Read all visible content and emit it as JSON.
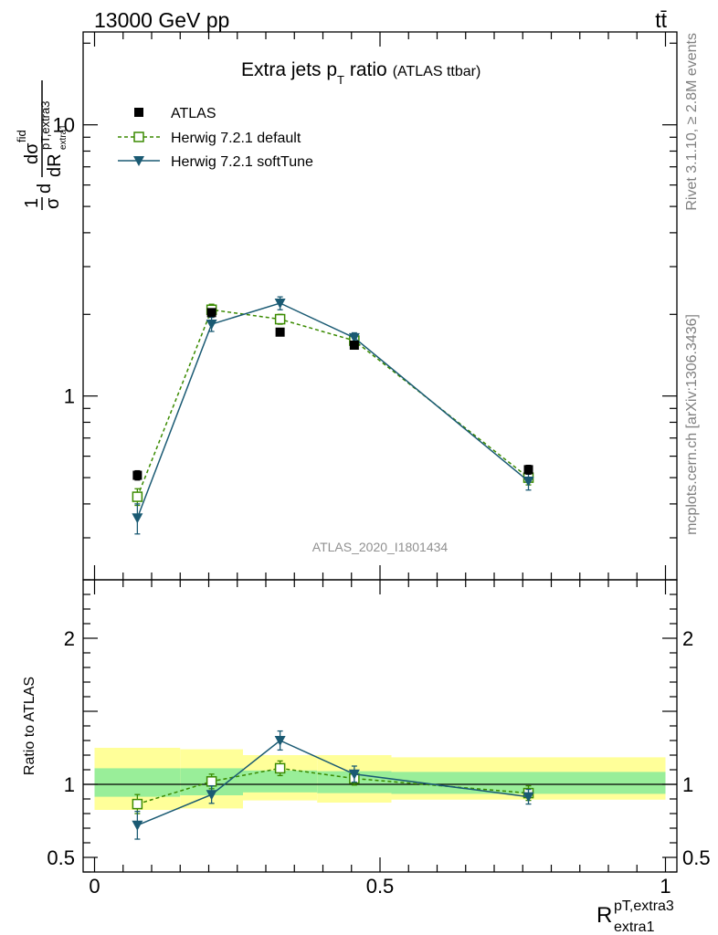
{
  "header": {
    "energy_label": "13000 GeV pp",
    "process_label": "tt̄"
  },
  "side_labels": {
    "rivet": "Rivet 3.1.10, ≥ 2.8M events",
    "mcplots": "mcplots.cern.ch [arXiv:1306.3436]"
  },
  "colors": {
    "atlas": "#000000",
    "herwig_default": "#3a8a00",
    "herwig_softtune": "#1a5a73",
    "band_inner": "#99ee99",
    "band_outer": "#ffff99"
  },
  "chart_data": [
    {
      "type": "line",
      "panel": "main",
      "title_main": "Extra jets p",
      "title_sub": "T",
      "title_tail": " ratio",
      "title_small": "(ATLAS ttbar)",
      "analysis_label": "ATLAS_2020_I1801434",
      "ylabel": "1/σ dσ^fid / dR^pT,extra3_extra1",
      "yscale": "log",
      "ylim": [
        0.21,
        22
      ],
      "xlim": [
        -0.02,
        1.02
      ],
      "ytick_labels": [
        "1",
        "10"
      ],
      "ytick_values": [
        1,
        10
      ],
      "series": [
        {
          "name": "ATLAS",
          "style": "markers",
          "x": [
            0.075,
            0.205,
            0.325,
            0.455,
            0.76
          ],
          "y": [
            0.51,
            2.03,
            1.72,
            1.54,
            0.535
          ],
          "yerr": [
            0.02,
            0.05,
            0.04,
            0.04,
            0.02
          ]
        },
        {
          "name": "Herwig 7.2.1 default",
          "style": "dashed-open-square",
          "x": [
            0.075,
            0.205,
            0.325,
            0.455,
            0.76
          ],
          "y": [
            0.425,
            2.08,
            1.92,
            1.6,
            0.5
          ],
          "yerr": [
            0.03,
            0.1,
            0.08,
            0.06,
            0.03
          ]
        },
        {
          "name": "Herwig 7.2.1 softTune",
          "style": "solid-down-triangle",
          "x": [
            0.075,
            0.205,
            0.325,
            0.455,
            0.76
          ],
          "y": [
            0.355,
            1.84,
            2.2,
            1.64,
            0.485
          ],
          "yerr": [
            0.045,
            0.11,
            0.12,
            0.07,
            0.035
          ]
        }
      ]
    },
    {
      "type": "line",
      "panel": "ratio",
      "ylabel": "Ratio to ATLAS",
      "xlabel_main": "R",
      "xlabel_sup": "pT,extra3",
      "xlabel_sub": "extra1",
      "ylim": [
        0.4,
        2.4
      ],
      "xlim": [
        -0.02,
        1.02
      ],
      "ytick_labels": [
        "0.5",
        "1",
        "2"
      ],
      "ytick_values": [
        0.5,
        1,
        2
      ],
      "xtick_labels": [
        "0",
        "0.5",
        "1"
      ],
      "xtick_values": [
        0,
        0.5,
        1
      ],
      "bands": {
        "edges": [
          0.0,
          0.15,
          0.26,
          0.39,
          0.52,
          1.0
        ],
        "inner_lo": [
          0.915,
          0.925,
          0.945,
          0.94,
          0.935
        ],
        "inner_hi": [
          1.11,
          1.11,
          1.095,
          1.09,
          1.085
        ],
        "outer_lo": [
          0.825,
          0.835,
          0.89,
          0.875,
          0.895
        ],
        "outer_hi": [
          1.25,
          1.24,
          1.2,
          1.2,
          1.185
        ]
      },
      "series": [
        {
          "name": "Herwig 7.2.1 default",
          "style": "dashed-open-square",
          "x": [
            0.075,
            0.205,
            0.325,
            0.455,
            0.76
          ],
          "y": [
            0.865,
            1.02,
            1.11,
            1.04,
            0.94
          ],
          "yerr": [
            0.065,
            0.05,
            0.05,
            0.045,
            0.05
          ]
        },
        {
          "name": "Herwig 7.2.1 softTune",
          "style": "solid-down-triangle",
          "x": [
            0.075,
            0.205,
            0.325,
            0.455,
            0.76
          ],
          "y": [
            0.72,
            0.93,
            1.3,
            1.07,
            0.915
          ],
          "yerr": [
            0.095,
            0.06,
            0.065,
            0.055,
            0.05
          ]
        }
      ]
    }
  ]
}
